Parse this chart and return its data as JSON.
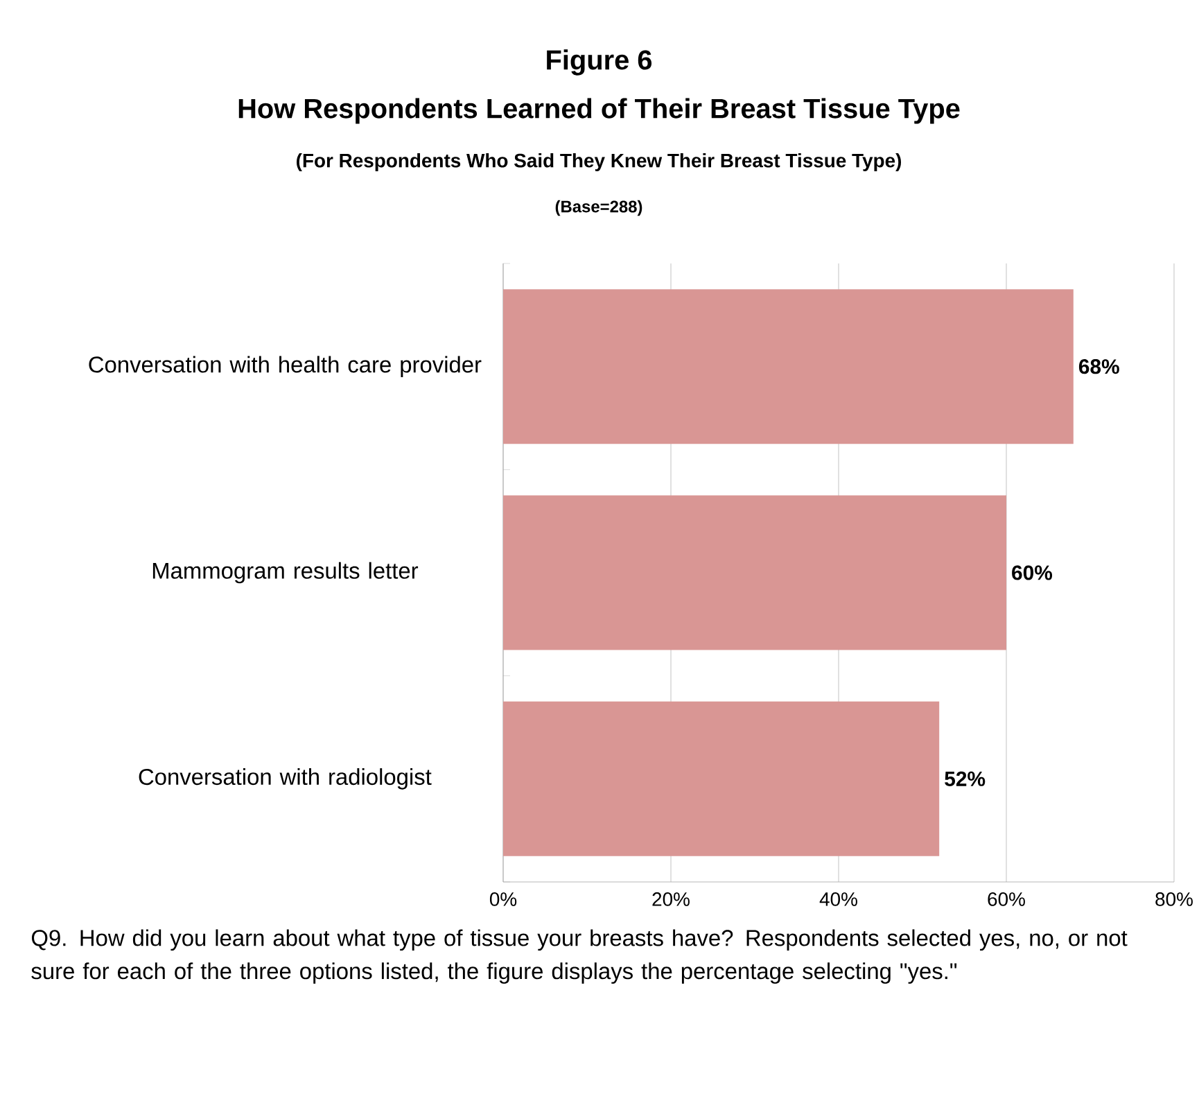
{
  "chart_data": {
    "type": "bar",
    "orientation": "horizontal",
    "title": "Figure 6",
    "subtitle": "How Respondents Learned of Their Breast Tissue Type",
    "categories": [
      "Conversation with health care provider",
      "Mammogram results letter",
      "Conversation with radiologist"
    ],
    "values": [
      68,
      60,
      52
    ],
    "value_labels": [
      "68%",
      "60%",
      "52%"
    ],
    "color": "#d99694",
    "xlim": [
      0,
      80
    ],
    "xticks": [
      {
        "value": 0,
        "label": "0%"
      },
      {
        "value": 20,
        "label": "20%"
      },
      {
        "value": 40,
        "label": "40%"
      },
      {
        "value": 60,
        "label": "60%"
      },
      {
        "value": 80,
        "label": "80%"
      }
    ],
    "grid": "x",
    "annotations": [
      "(For Respondents Who Said They Knew Their Breast Tissue Type)",
      "(Base=288)",
      "Q9. How did you learn about what type of tissue your breasts have? Respondents selected yes, no, or not sure for each of the three options listed, the figure displays the percentage selecting \"yes.\""
    ]
  }
}
